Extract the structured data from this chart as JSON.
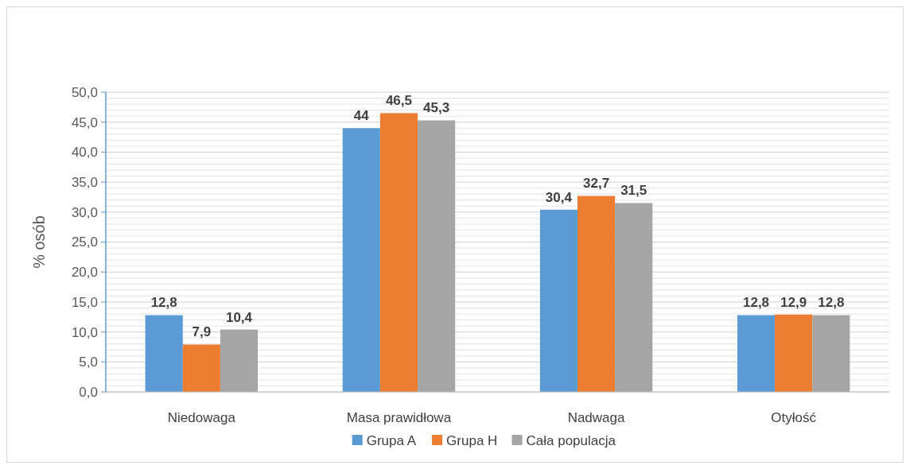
{
  "chart_data": {
    "type": "bar",
    "ylabel": "% osób",
    "categories": [
      "Niedowaga",
      "Masa prawidłowa",
      "Nadwaga",
      "Otyłość"
    ],
    "series": [
      {
        "name": "Grupa A",
        "color": "#5b9bd5",
        "values": [
          12.8,
          44,
          30.4,
          12.8
        ],
        "value_labels": [
          "12,8",
          "44",
          "30,4",
          "12,8"
        ]
      },
      {
        "name": "Grupa H",
        "color": "#ed7d31",
        "values": [
          7.9,
          46.5,
          32.7,
          12.9
        ],
        "value_labels": [
          "7,9",
          "46,5",
          "32,7",
          "12,9"
        ]
      },
      {
        "name": "Cała populacja",
        "color": "#a5a5a5",
        "values": [
          10.4,
          45.3,
          31.5,
          12.8
        ],
        "value_labels": [
          "10,4",
          "45,3",
          "31,5",
          "12,8"
        ]
      }
    ],
    "ylim": [
      0,
      50
    ],
    "yticks": [
      {
        "value": 0,
        "label": "0,0"
      },
      {
        "value": 5,
        "label": "5,0"
      },
      {
        "value": 10,
        "label": "10,0"
      },
      {
        "value": 15,
        "label": "15,0"
      },
      {
        "value": 20,
        "label": "20,0"
      },
      {
        "value": 25,
        "label": "25,0"
      },
      {
        "value": 30,
        "label": "30,0"
      },
      {
        "value": 35,
        "label": "35,0"
      },
      {
        "value": 40,
        "label": "40,0"
      },
      {
        "value": 45,
        "label": "45,0"
      },
      {
        "value": 50,
        "label": "50,0"
      }
    ],
    "grid": "y",
    "legend": "bottom"
  }
}
